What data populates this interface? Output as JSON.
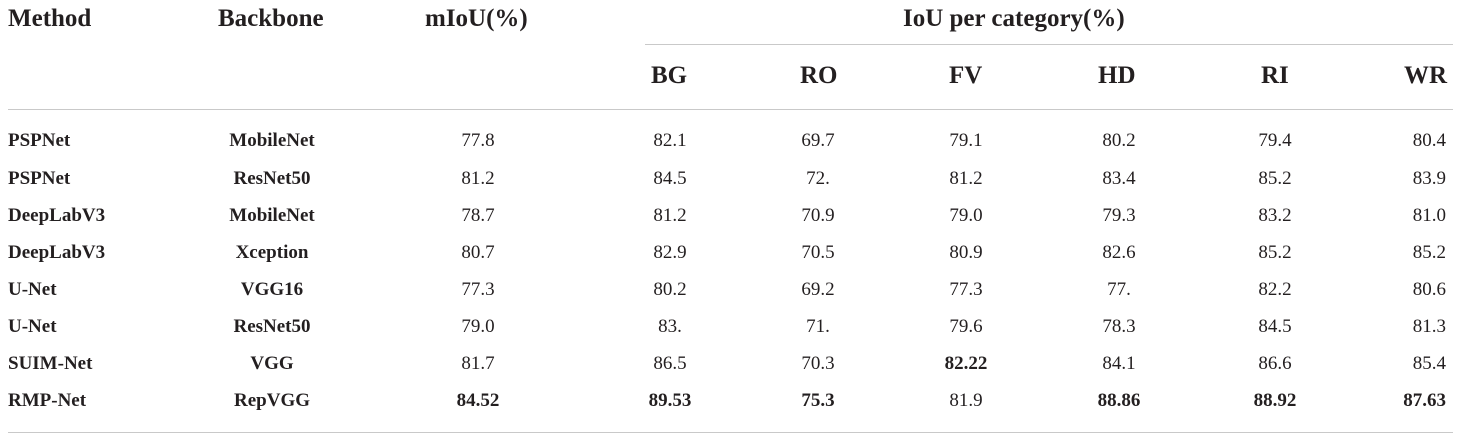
{
  "table": {
    "headers": {
      "method": "Method",
      "backbone": "Backbone",
      "miou": "mIoU(%)",
      "iou_group": "IoU per category(%)",
      "categories": [
        "BG",
        "RO",
        "FV",
        "HD",
        "RI",
        "WR"
      ]
    },
    "rows": [
      {
        "method": "PSPNet",
        "backbone": "MobileNet",
        "miou": "77.8",
        "iou": [
          "82.1",
          "69.7",
          "79.1",
          "80.2",
          "79.4",
          "80.4"
        ],
        "bold": []
      },
      {
        "method": "PSPNet",
        "backbone": "ResNet50",
        "miou": "81.2",
        "iou": [
          "84.5",
          "72.",
          "81.2",
          "83.4",
          "85.2",
          "83.9"
        ],
        "bold": []
      },
      {
        "method": "DeepLabV3",
        "backbone": "MobileNet",
        "miou": "78.7",
        "iou": [
          "81.2",
          "70.9",
          "79.0",
          "79.3",
          "83.2",
          "81.0"
        ],
        "bold": []
      },
      {
        "method": "DeepLabV3",
        "backbone": "Xception",
        "miou": "80.7",
        "iou": [
          "82.9",
          "70.5",
          "80.9",
          "82.6",
          "85.2",
          "85.2"
        ],
        "bold": []
      },
      {
        "method": "U-Net",
        "backbone": "VGG16",
        "miou": "77.3",
        "iou": [
          "80.2",
          "69.2",
          "77.3",
          "77.",
          "82.2",
          "80.6"
        ],
        "bold": []
      },
      {
        "method": "U-Net",
        "backbone": "ResNet50",
        "miou": "79.0",
        "iou": [
          "83.",
          "71.",
          "79.6",
          "78.3",
          "84.5",
          "81.3"
        ],
        "bold": []
      },
      {
        "method": "SUIM-Net",
        "backbone": "VGG",
        "miou": "81.7",
        "iou": [
          "86.5",
          "70.3",
          "82.22",
          "84.1",
          "86.6",
          "85.4"
        ],
        "bold": [
          "FV"
        ]
      },
      {
        "method": "RMP-Net",
        "backbone": "RepVGG",
        "miou": "84.52",
        "iou": [
          "89.53",
          "75.3",
          "81.9",
          "88.86",
          "88.92",
          "87.63"
        ],
        "bold": [
          "mIoU",
          "BG",
          "RO",
          "HD",
          "RI",
          "WR"
        ]
      }
    ]
  }
}
